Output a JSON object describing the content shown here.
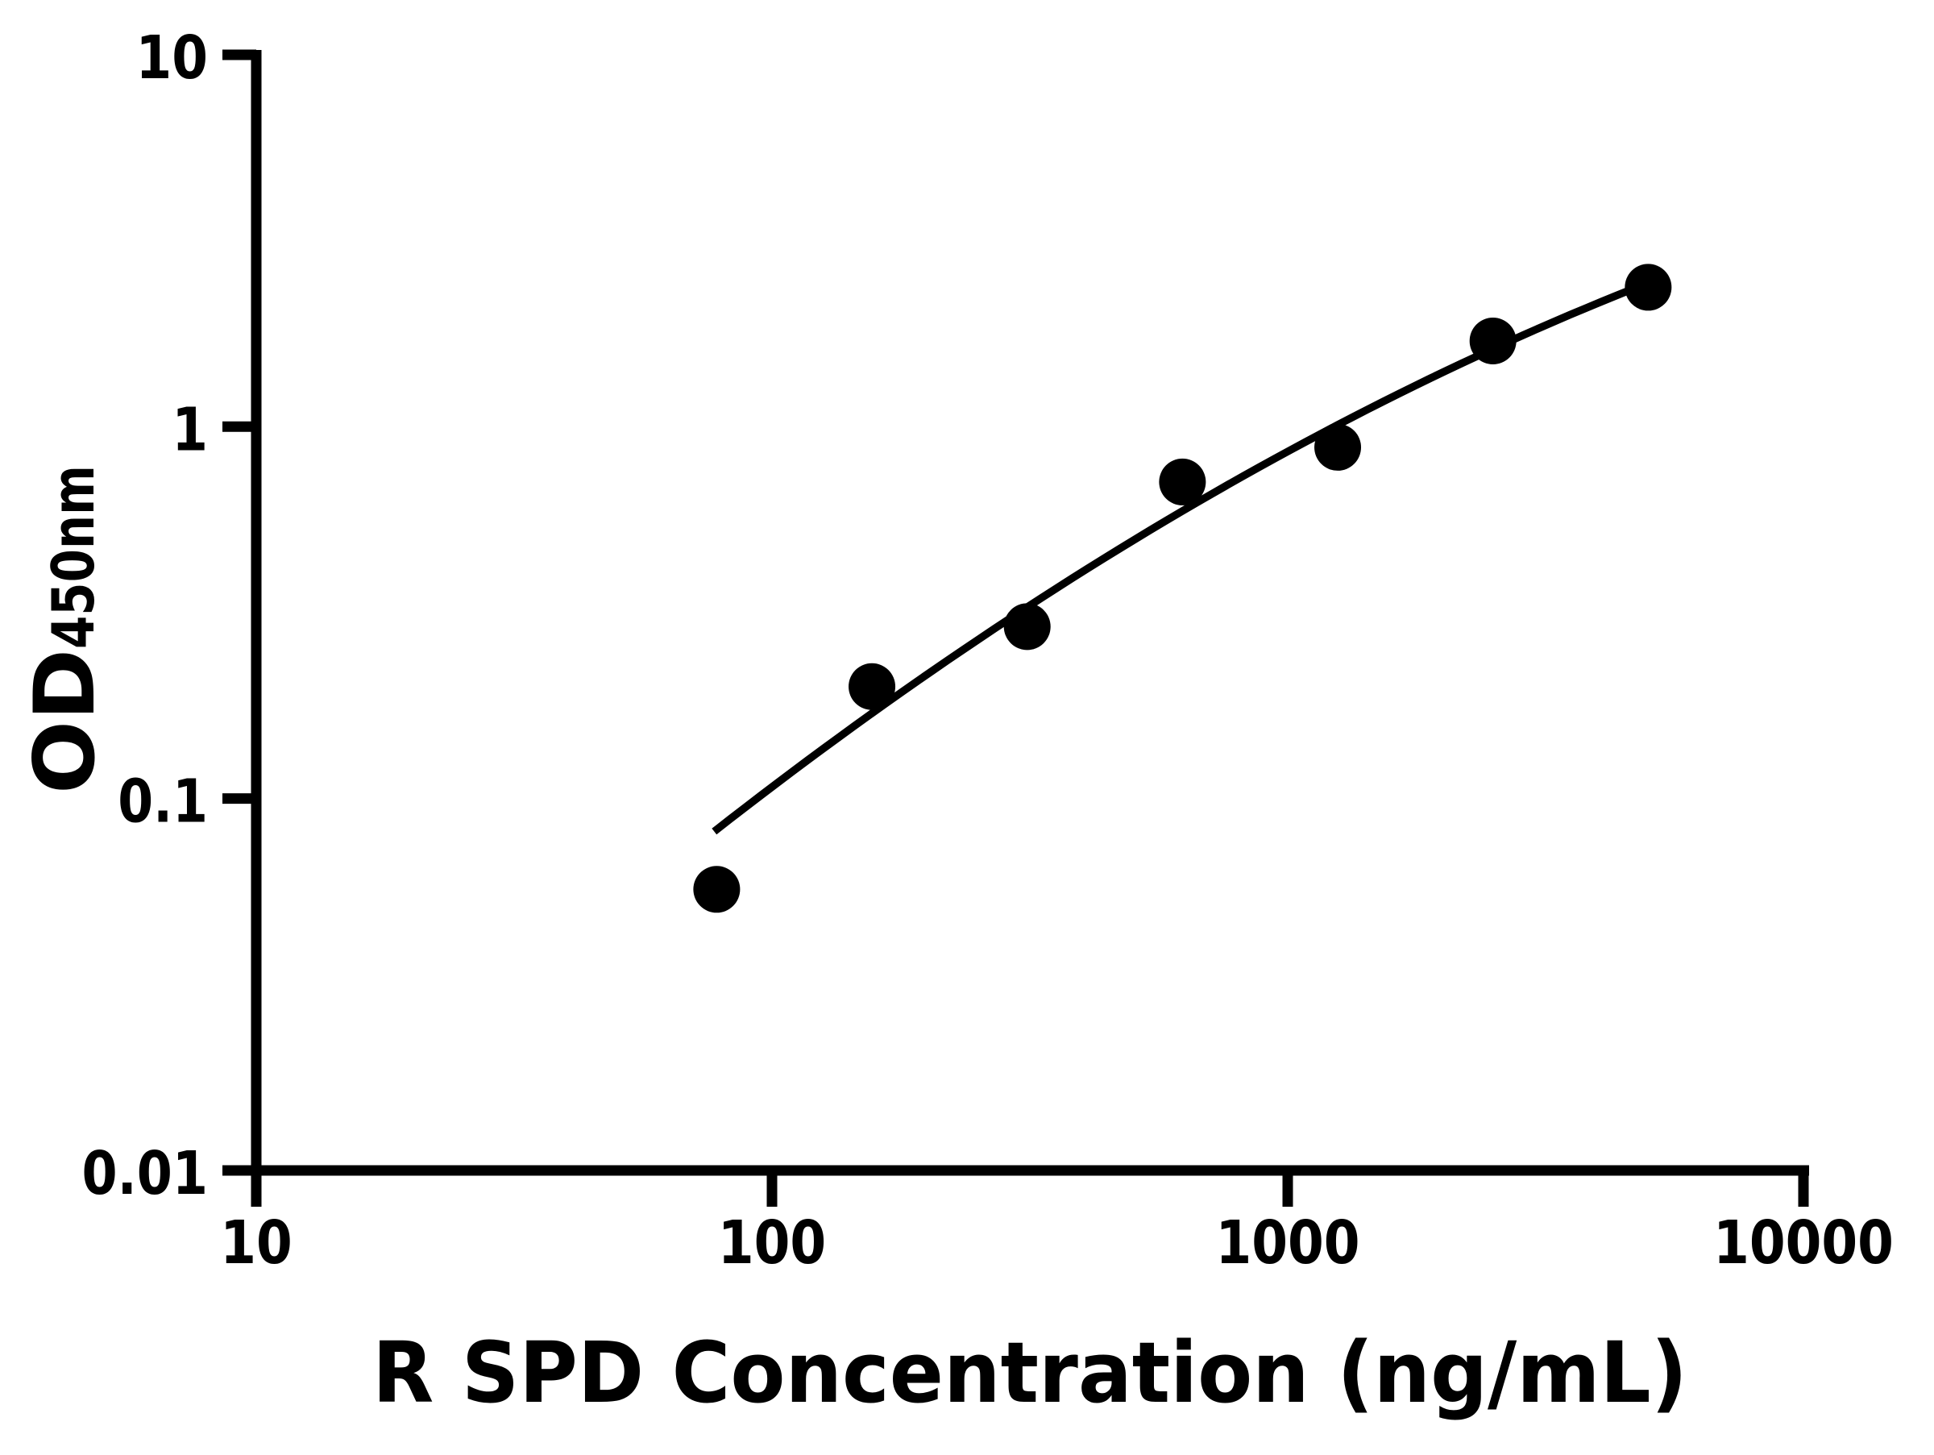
{
  "chart_data": {
    "type": "scatter",
    "title": "",
    "xlabel": "R SPD Concentration (ng/mL)",
    "ylabel_main": "OD",
    "ylabel_sub": "450nm",
    "x_scale": "log",
    "y_scale": "log",
    "xlim": [
      10,
      10000
    ],
    "ylim": [
      0.01,
      10
    ],
    "grid": false,
    "legend": false,
    "x_tick_values": [
      10,
      100,
      1000,
      10000
    ],
    "x_tick_labels": [
      "10",
      "100",
      "1000",
      "10000"
    ],
    "y_tick_values": [
      10,
      1,
      0.1,
      0.01
    ],
    "y_tick_labels": [
      "10",
      "1",
      "0.1",
      "0.01"
    ],
    "points": [
      {
        "x": 78.125,
        "y": 0.057
      },
      {
        "x": 156.25,
        "y": 0.2
      },
      {
        "x": 312.5,
        "y": 0.29
      },
      {
        "x": 625,
        "y": 0.71
      },
      {
        "x": 1250,
        "y": 0.88
      },
      {
        "x": 2500,
        "y": 1.7
      },
      {
        "x": 5000,
        "y": 2.37
      }
    ],
    "fit_curve": {
      "model": "quadratic-in-log10-log10",
      "coeffs": [
        -3.6671,
        1.6471,
        -0.149
      ],
      "log10x_range": [
        1.888,
        3.69897
      ]
    },
    "marker_color": "#000000",
    "marker_diameter_px": 58,
    "line_color": "#000000",
    "axis_color": "#000000",
    "background": "#ffffff"
  }
}
